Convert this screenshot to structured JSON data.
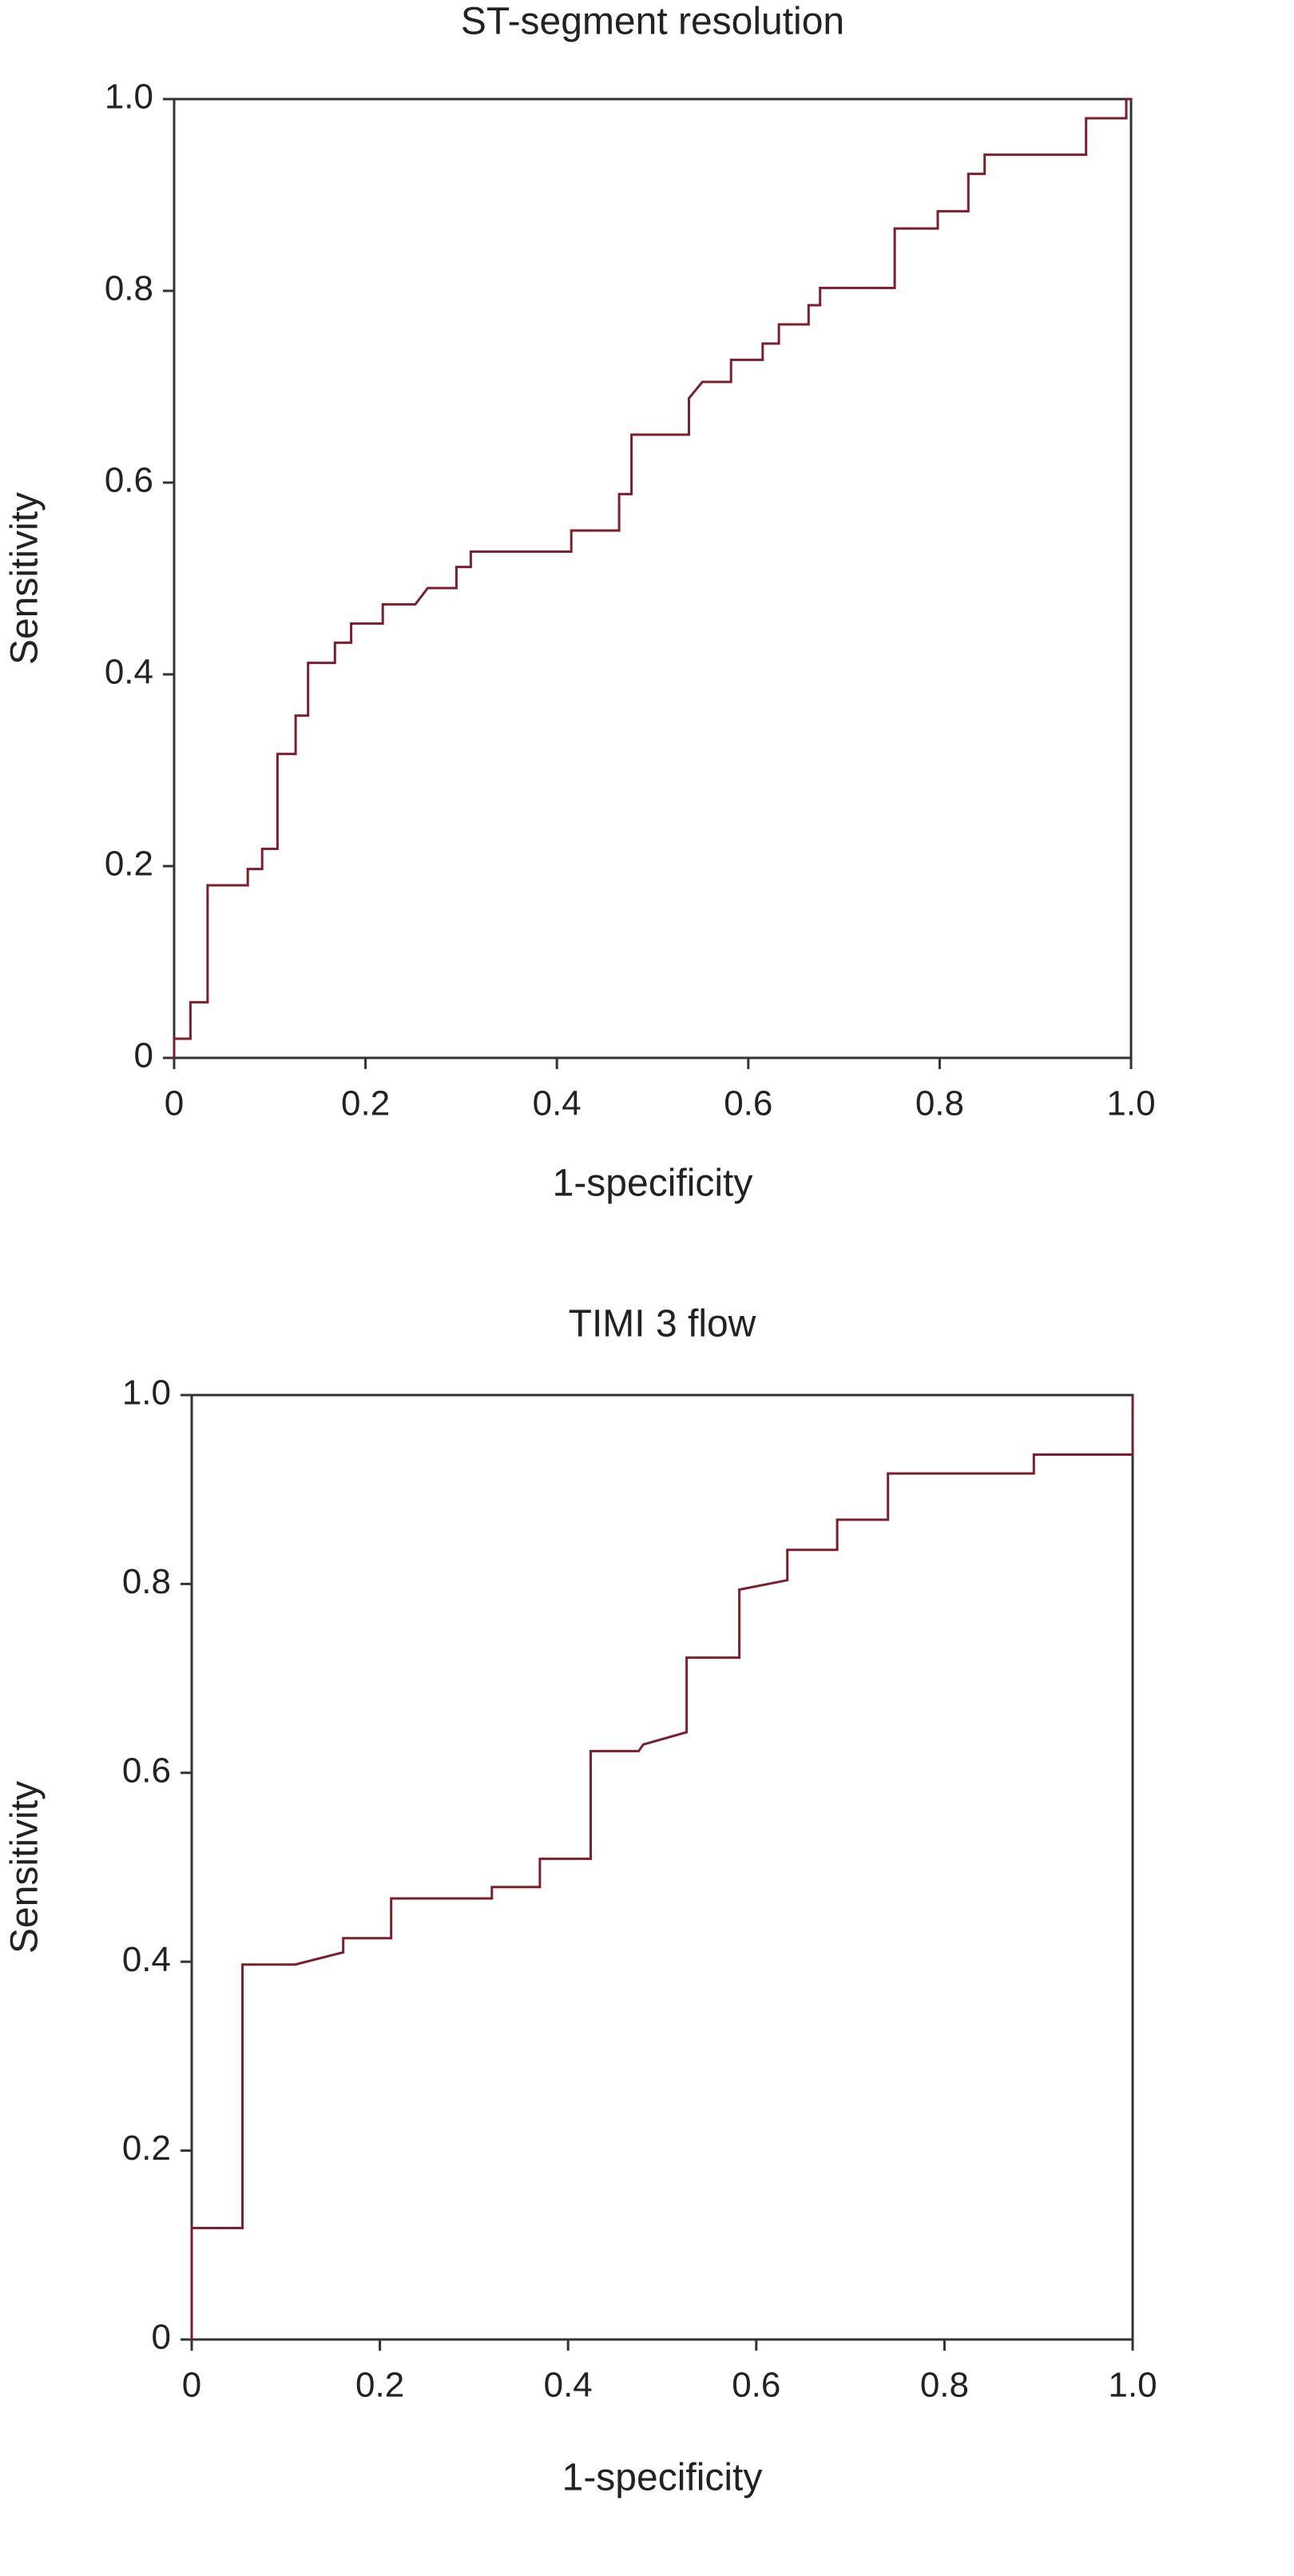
{
  "chart_data": [
    {
      "type": "line",
      "title": "ST-segment resolution",
      "xlabel": "1-specificity",
      "ylabel": "Sensitivity",
      "x": [
        0,
        0,
        0.017,
        0.017,
        0.035,
        0.035,
        0.077,
        0.077,
        0.092,
        0.092,
        0.108,
        0.108,
        0.127,
        0.127,
        0.14,
        0.14,
        0.168,
        0.168,
        0.185,
        0.185,
        0.218,
        0.218,
        0.252,
        0.265,
        0.295,
        0.295,
        0.31,
        0.31,
        0.415,
        0.415,
        0.465,
        0.465,
        0.478,
        0.478,
        0.538,
        0.538,
        0.552,
        0.582,
        0.582,
        0.615,
        0.615,
        0.632,
        0.632,
        0.663,
        0.663,
        0.675,
        0.675,
        0.753,
        0.753,
        0.798,
        0.798,
        0.83,
        0.83,
        0.847,
        0.847,
        0.953,
        0.953,
        0.995,
        0.995,
        1.0
      ],
      "values": [
        0,
        0.02,
        0.02,
        0.058,
        0.058,
        0.18,
        0.18,
        0.197,
        0.197,
        0.218,
        0.218,
        0.317,
        0.317,
        0.357,
        0.357,
        0.412,
        0.412,
        0.433,
        0.433,
        0.453,
        0.453,
        0.473,
        0.473,
        0.49,
        0.49,
        0.512,
        0.512,
        0.528,
        0.528,
        0.55,
        0.55,
        0.588,
        0.588,
        0.65,
        0.65,
        0.688,
        0.705,
        0.705,
        0.728,
        0.728,
        0.745,
        0.745,
        0.765,
        0.765,
        0.785,
        0.785,
        0.803,
        0.803,
        0.865,
        0.865,
        0.883,
        0.883,
        0.922,
        0.922,
        0.942,
        0.942,
        0.98,
        0.98,
        1.0,
        1.0
      ],
      "color": "#7a1f2b",
      "xlim": [
        0,
        1
      ],
      "ylim": [
        0,
        1
      ],
      "xticks": [
        0,
        0.2,
        0.4,
        0.6,
        0.8,
        {
          "value": 1,
          "label": "1.0"
        }
      ],
      "yticks": [
        0,
        0.2,
        0.4,
        0.6,
        0.8,
        {
          "value": 1,
          "label": "1.0"
        }
      ]
    },
    {
      "type": "line",
      "title": "TIMI 3 flow",
      "xlabel": "1-specificity",
      "ylabel": "Sensitivity",
      "x": [
        0,
        0,
        0.054,
        0.054,
        0.11,
        0.161,
        0.161,
        0.212,
        0.212,
        0.319,
        0.319,
        0.37,
        0.37,
        0.424,
        0.424,
        0.475,
        0.48,
        0.526,
        0.526,
        0.582,
        0.582,
        0.633,
        0.633,
        0.686,
        0.686,
        0.74,
        0.74,
        0.895,
        0.895,
        1.0,
        1.0
      ],
      "values": [
        0,
        0.118,
        0.118,
        0.397,
        0.397,
        0.41,
        0.425,
        0.425,
        0.467,
        0.467,
        0.479,
        0.479,
        0.509,
        0.509,
        0.623,
        0.623,
        0.63,
        0.643,
        0.722,
        0.722,
        0.794,
        0.804,
        0.836,
        0.836,
        0.868,
        0.868,
        0.917,
        0.917,
        0.937,
        0.937,
        1.0
      ],
      "color": "#7a1f2b",
      "xlim": [
        0,
        1
      ],
      "ylim": [
        0,
        1
      ],
      "xticks": [
        0,
        0.2,
        0.4,
        0.6,
        0.8,
        {
          "value": 1,
          "label": "1.0"
        }
      ],
      "yticks": [
        0,
        0.2,
        0.4,
        0.6,
        0.8,
        {
          "value": 1,
          "label": "1.0"
        }
      ]
    }
  ]
}
